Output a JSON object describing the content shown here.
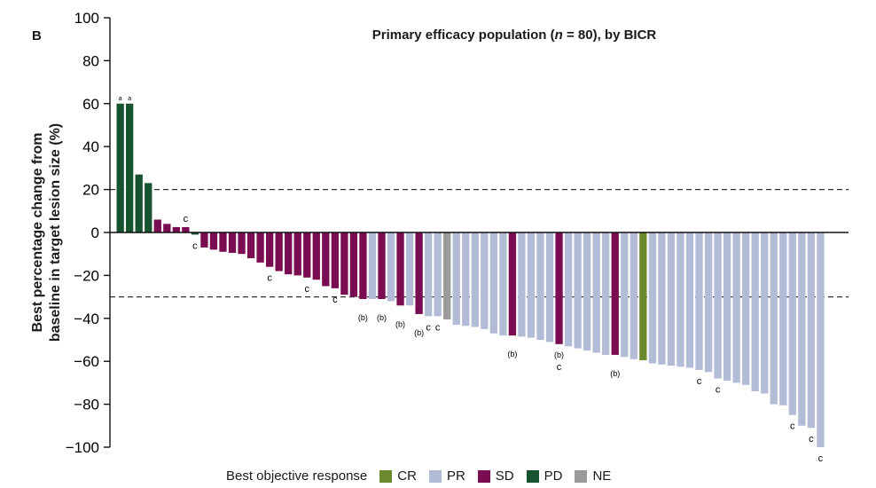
{
  "panel_label": "B",
  "title_prefix": "Primary efficacy population (",
  "title_n": "n",
  "title_suffix": " = 80), by BICR",
  "ylabel_line1": "Best percentage change from",
  "ylabel_line2": "baseline in target lesion size (%)",
  "colors": {
    "CR": "#6b8a2e",
    "PR": "#b3bcd6",
    "SD": "#7a0c52",
    "PD": "#17532e",
    "NE": "#9b9b9b"
  },
  "legend": {
    "title": "Best objective response",
    "items": [
      {
        "key": "CR",
        "label": "CR"
      },
      {
        "key": "PR",
        "label": "PR"
      },
      {
        "key": "SD",
        "label": "SD"
      },
      {
        "key": "PD",
        "label": "PD"
      },
      {
        "key": "NE",
        "label": "NE"
      }
    ]
  },
  "chart_data": {
    "type": "bar",
    "ylim": [
      -100,
      100
    ],
    "yticks": [
      -100,
      -80,
      -60,
      -40,
      -20,
      0,
      20,
      40,
      60,
      80,
      100
    ],
    "reference_lines": [
      20,
      -30
    ],
    "bars": [
      {
        "value": 60,
        "response": "PD",
        "label": "a"
      },
      {
        "value": 60,
        "response": "PD",
        "label": "a"
      },
      {
        "value": 27,
        "response": "PD",
        "label": ""
      },
      {
        "value": 23,
        "response": "PD",
        "label": ""
      },
      {
        "value": 6,
        "response": "SD",
        "label": ""
      },
      {
        "value": 4,
        "response": "SD",
        "label": ""
      },
      {
        "value": 2.5,
        "response": "SD",
        "label": ""
      },
      {
        "value": 2.5,
        "response": "SD",
        "label": "c"
      },
      {
        "value": -1,
        "response": "PD",
        "label": "c"
      },
      {
        "value": -7,
        "response": "SD",
        "label": ""
      },
      {
        "value": -8,
        "response": "SD",
        "label": ""
      },
      {
        "value": -9,
        "response": "SD",
        "label": ""
      },
      {
        "value": -9.5,
        "response": "SD",
        "label": ""
      },
      {
        "value": -10,
        "response": "SD",
        "label": ""
      },
      {
        "value": -12,
        "response": "SD",
        "label": ""
      },
      {
        "value": -14,
        "response": "SD",
        "label": ""
      },
      {
        "value": -16,
        "response": "SD",
        "label": "c"
      },
      {
        "value": -18,
        "response": "SD",
        "label": ""
      },
      {
        "value": -19.5,
        "response": "SD",
        "label": ""
      },
      {
        "value": -20,
        "response": "SD",
        "label": ""
      },
      {
        "value": -21,
        "response": "SD",
        "label": "c"
      },
      {
        "value": -22,
        "response": "SD",
        "label": ""
      },
      {
        "value": -25,
        "response": "SD",
        "label": ""
      },
      {
        "value": -26,
        "response": "SD",
        "label": "c"
      },
      {
        "value": -29,
        "response": "SD",
        "label": ""
      },
      {
        "value": -30,
        "response": "SD",
        "label": ""
      },
      {
        "value": -31,
        "response": "SD",
        "label": "(b)"
      },
      {
        "value": -31,
        "response": "PR",
        "label": ""
      },
      {
        "value": -31,
        "response": "SD",
        "label": "(b)"
      },
      {
        "value": -32,
        "response": "PR",
        "label": ""
      },
      {
        "value": -34,
        "response": "SD",
        "label": "(b)"
      },
      {
        "value": -34,
        "response": "PR",
        "label": ""
      },
      {
        "value": -38,
        "response": "SD",
        "label": "(b)"
      },
      {
        "value": -39,
        "response": "PR",
        "label": "c"
      },
      {
        "value": -39,
        "response": "PR",
        "label": "c"
      },
      {
        "value": -40.5,
        "response": "NE",
        "label": ""
      },
      {
        "value": -43,
        "response": "PR",
        "label": ""
      },
      {
        "value": -43.5,
        "response": "PR",
        "label": ""
      },
      {
        "value": -44,
        "response": "PR",
        "label": ""
      },
      {
        "value": -45,
        "response": "PR",
        "label": ""
      },
      {
        "value": -47,
        "response": "PR",
        "label": ""
      },
      {
        "value": -48,
        "response": "PR",
        "label": ""
      },
      {
        "value": -48,
        "response": "SD",
        "label": "(b)"
      },
      {
        "value": -48.5,
        "response": "PR",
        "label": ""
      },
      {
        "value": -49,
        "response": "PR",
        "label": ""
      },
      {
        "value": -50,
        "response": "PR",
        "label": ""
      },
      {
        "value": -51,
        "response": "PR",
        "label": ""
      },
      {
        "value": -52,
        "response": "SD",
        "label": "(b)c"
      },
      {
        "value": -53,
        "response": "PR",
        "label": ""
      },
      {
        "value": -54,
        "response": "PR",
        "label": ""
      },
      {
        "value": -55,
        "response": "PR",
        "label": ""
      },
      {
        "value": -56,
        "response": "PR",
        "label": ""
      },
      {
        "value": -57,
        "response": "PR",
        "label": ""
      },
      {
        "value": -57,
        "response": "SD",
        "label": "(b)"
      },
      {
        "value": -58,
        "response": "PR",
        "label": ""
      },
      {
        "value": -59,
        "response": "PR",
        "label": ""
      },
      {
        "value": -59.5,
        "response": "CR",
        "label": ""
      },
      {
        "value": -61,
        "response": "PR",
        "label": ""
      },
      {
        "value": -61.5,
        "response": "PR",
        "label": ""
      },
      {
        "value": -62,
        "response": "PR",
        "label": ""
      },
      {
        "value": -62.5,
        "response": "PR",
        "label": ""
      },
      {
        "value": -63,
        "response": "PR",
        "label": ""
      },
      {
        "value": -64,
        "response": "PR",
        "label": "c"
      },
      {
        "value": -65,
        "response": "PR",
        "label": ""
      },
      {
        "value": -68,
        "response": "PR",
        "label": "c"
      },
      {
        "value": -69,
        "response": "PR",
        "label": ""
      },
      {
        "value": -70,
        "response": "PR",
        "label": ""
      },
      {
        "value": -71,
        "response": "PR",
        "label": ""
      },
      {
        "value": -74,
        "response": "PR",
        "label": ""
      },
      {
        "value": -75,
        "response": "PR",
        "label": ""
      },
      {
        "value": -80,
        "response": "PR",
        "label": ""
      },
      {
        "value": -80.5,
        "response": "PR",
        "label": ""
      },
      {
        "value": -85,
        "response": "PR",
        "label": "c"
      },
      {
        "value": -90,
        "response": "PR",
        "label": ""
      },
      {
        "value": -91,
        "response": "PR",
        "label": "c"
      },
      {
        "value": -100,
        "response": "PR",
        "label": "c"
      }
    ]
  }
}
